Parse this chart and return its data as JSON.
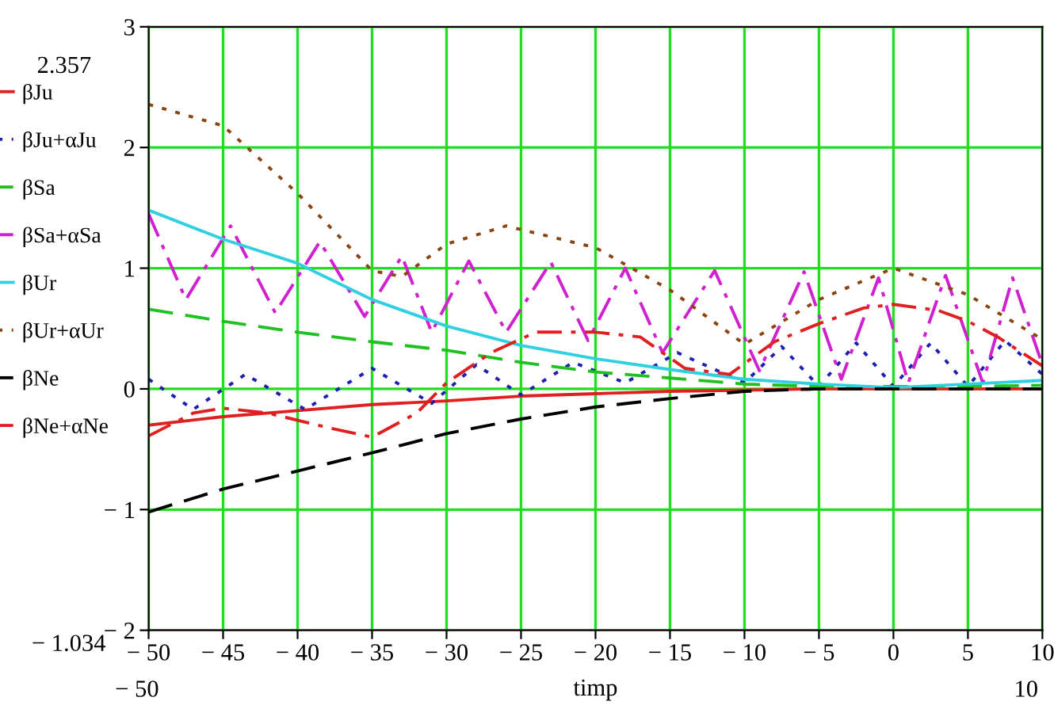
{
  "chart_data": {
    "type": "line",
    "xlabel": "timp",
    "xlim": [
      -50,
      10
    ],
    "ylim": [
      -2,
      3
    ],
    "xticks": [
      {
        "value": -50,
        "label": "− 50"
      },
      {
        "value": -45,
        "label": "− 45"
      },
      {
        "value": -40,
        "label": "− 40"
      },
      {
        "value": -35,
        "label": "− 35"
      },
      {
        "value": -30,
        "label": "− 30"
      },
      {
        "value": -25,
        "label": "− 25"
      },
      {
        "value": -20,
        "label": "− 20"
      },
      {
        "value": -15,
        "label": "− 15"
      },
      {
        "value": -10,
        "label": "− 10"
      },
      {
        "value": -5,
        "label": "− 5"
      },
      0,
      5,
      10
    ],
    "yticks": [
      {
        "value": -2,
        "label": "− 2"
      },
      {
        "value": -1,
        "label": "− 1"
      },
      0,
      1,
      2,
      3
    ],
    "grid": true,
    "legend": "left",
    "marker": "none",
    "annotations": [
      "2.357",
      "− 1.034",
      "− 50",
      "10"
    ],
    "series": [
      {
        "name": "βJu",
        "color": "#e02020",
        "line_style": "solid",
        "x": [
          -50,
          -45,
          -40,
          -35,
          -30,
          -25,
          -20,
          -15,
          -10,
          -5,
          0,
          5,
          10
        ],
        "values": [
          -0.3,
          -0.23,
          -0.18,
          -0.13,
          -0.1,
          -0.06,
          -0.04,
          -0.02,
          -0.01,
          0,
          0,
          0,
          0
        ]
      },
      {
        "name": "βJu+αJu",
        "color": "#2020b0",
        "line_style": "dotted",
        "x": [
          -50,
          -47,
          -43.5,
          -39.5,
          -35,
          -31,
          -28,
          -25,
          -21.5,
          -18,
          -14.5,
          -10,
          -7.5,
          -5,
          -2.5,
          0,
          2.5,
          5,
          7.5,
          10
        ],
        "values": [
          0.08,
          -0.17,
          0.12,
          -0.17,
          0.17,
          -0.12,
          0.2,
          -0.05,
          0.22,
          0.05,
          0.3,
          0.05,
          0.35,
          0.02,
          0.38,
          0.02,
          0.38,
          0.02,
          0.4,
          0.12
        ]
      },
      {
        "name": "βSa",
        "color": "#20c020",
        "line_style": "dashed",
        "x": [
          -50,
          -45,
          -40,
          -35,
          -30,
          -25,
          -20,
          -15,
          -10,
          -5,
          0,
          5,
          10
        ],
        "values": [
          0.66,
          0.56,
          0.47,
          0.39,
          0.32,
          0.22,
          0.14,
          0.09,
          0.04,
          0.02,
          0.02,
          0.02,
          0.03
        ]
      },
      {
        "name": "βSa+αSa",
        "color": "#d020d0",
        "line_style": "dashdot",
        "x": [
          -50,
          -47.5,
          -44.5,
          -41.5,
          -38.5,
          -35.5,
          -33,
          -31,
          -28.5,
          -26,
          -23,
          -20.5,
          -18,
          -15.5,
          -12,
          -9,
          -6,
          -3.5,
          -1,
          1,
          3.5,
          6,
          8,
          10
        ],
        "values": [
          1.45,
          0.74,
          1.35,
          0.63,
          1.22,
          0.6,
          1.1,
          0.47,
          1.06,
          0.47,
          1.05,
          0.4,
          1.0,
          0.3,
          0.98,
          0.15,
          0.97,
          0.08,
          0.92,
          0.05,
          0.94,
          0.05,
          0.92,
          0.2
        ]
      },
      {
        "name": "βUr",
        "color": "#30d0e0",
        "line_style": "solid",
        "x": [
          -50,
          -45,
          -40,
          -35,
          -30,
          -25,
          -20,
          -15,
          -10,
          -5,
          0,
          5,
          10
        ],
        "values": [
          1.48,
          1.24,
          1.04,
          0.74,
          0.52,
          0.36,
          0.25,
          0.16,
          0.08,
          0.04,
          0.01,
          0.04,
          0.07
        ]
      },
      {
        "name": "βUr+αUr",
        "color": "#8b4513",
        "line_style": "dotted",
        "x": [
          -50,
          -45,
          -40,
          -35,
          -33,
          -30,
          -26,
          -20,
          -15,
          -10,
          -5,
          0,
          5,
          10
        ],
        "values": [
          2.357,
          2.18,
          1.62,
          0.98,
          0.93,
          1.2,
          1.35,
          1.17,
          0.82,
          0.37,
          0.74,
          1.0,
          0.78,
          0.41
        ]
      },
      {
        "name": "βNe",
        "color": "#000000",
        "line_style": "dashed",
        "x": [
          -50,
          -45,
          -40,
          -35,
          -30,
          -25,
          -20,
          -15,
          -10,
          -5,
          0,
          5,
          10
        ],
        "values": [
          -1.02,
          -0.83,
          -0.68,
          -0.53,
          -0.37,
          -0.25,
          -0.15,
          -0.08,
          -0.02,
          0,
          0,
          0,
          0
        ]
      },
      {
        "name": "βNe+αNe",
        "color": "#e02020",
        "line_style": "dashdot",
        "x": [
          -50,
          -47,
          -45,
          -42,
          -38,
          -35,
          -32,
          -30,
          -27,
          -24,
          -20,
          -17,
          -14,
          -11,
          -8,
          -5,
          -2,
          0,
          3,
          5,
          7,
          10
        ],
        "values": [
          -0.39,
          -0.2,
          -0.16,
          -0.2,
          -0.32,
          -0.4,
          -0.2,
          0.05,
          0.3,
          0.47,
          0.47,
          0.43,
          0.17,
          0.12,
          0.39,
          0.54,
          0.67,
          0.7,
          0.65,
          0.56,
          0.43,
          0.19
        ]
      }
    ]
  }
}
